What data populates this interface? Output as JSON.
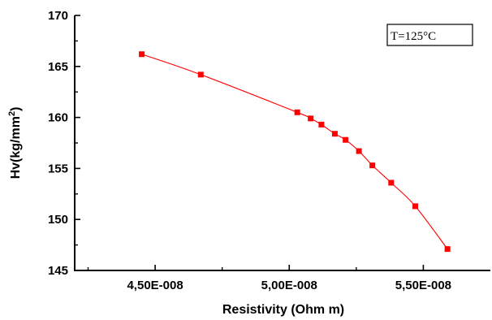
{
  "chart_data": {
    "type": "line",
    "xlabel": "Resistivity (Ohm m)",
    "ylabel": "Hv(kg/mm",
    "ylabel_superscript": "2",
    "ylabel_suffix": ")",
    "annotation": "T=125°C",
    "xlim": [
      4.2e-08,
      5.75e-08
    ],
    "ylim": [
      145,
      170
    ],
    "xticks": [
      4.5e-08,
      5e-08,
      5.5e-08
    ],
    "xtick_labels": [
      "4,50E-008",
      "5,00E-008",
      "5,50E-008"
    ],
    "yticks": [
      145,
      150,
      155,
      160,
      165,
      170
    ],
    "ytick_labels": [
      "145",
      "150",
      "155",
      "160",
      "165",
      "170"
    ],
    "grid": false,
    "series": [
      {
        "color": "#ff0000",
        "marker": "square",
        "x": [
          4.45e-08,
          4.67e-08,
          5.03e-08,
          5.08e-08,
          5.12e-08,
          5.17e-08,
          5.21e-08,
          5.26e-08,
          5.31e-08,
          5.38e-08,
          5.47e-08,
          5.59e-08
        ],
        "y": [
          166.2,
          164.2,
          160.5,
          159.9,
          159.3,
          158.4,
          157.8,
          156.7,
          155.3,
          153.6,
          151.3,
          147.1
        ]
      }
    ]
  }
}
